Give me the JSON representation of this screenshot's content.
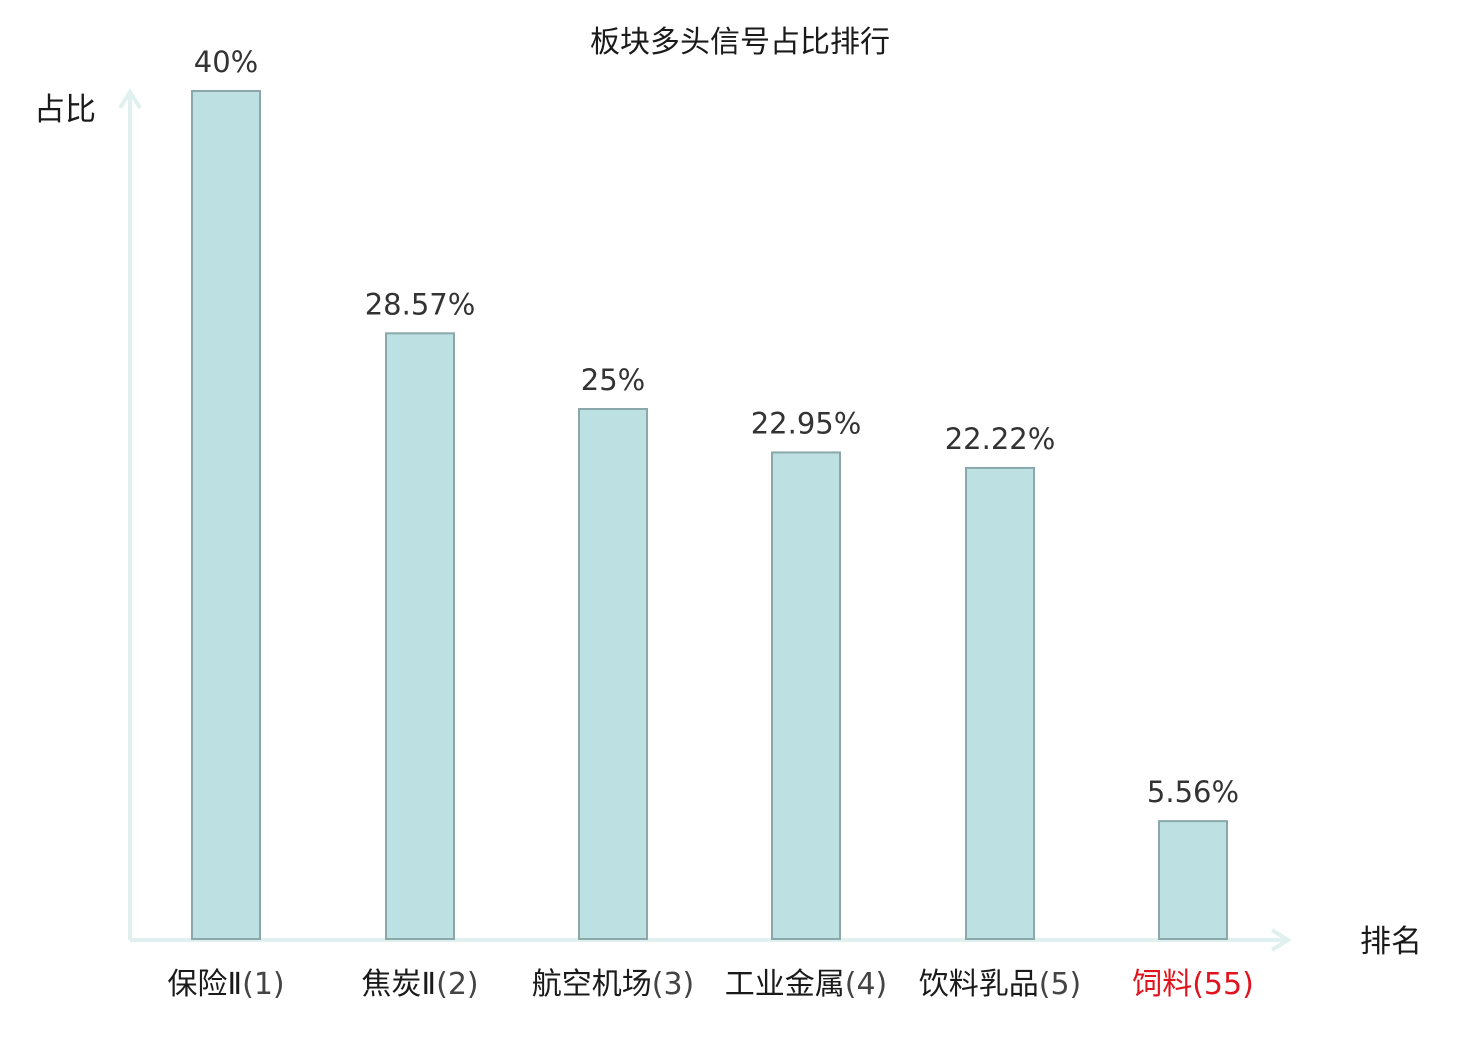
{
  "chart_data": {
    "type": "bar",
    "title": "板块多头信号占比排行",
    "xlabel": "排名",
    "ylabel": "占比",
    "ylim": [
      0,
      40
    ],
    "categories": [
      {
        "name": "保险Ⅱ",
        "rank": "(1)",
        "highlight": false
      },
      {
        "name": "焦炭Ⅱ",
        "rank": "(2)",
        "highlight": false
      },
      {
        "name": "航空机场",
        "rank": "(3)",
        "highlight": false
      },
      {
        "name": "工业金属",
        "rank": "(4)",
        "highlight": false
      },
      {
        "name": "饮料乳品",
        "rank": "(5)",
        "highlight": false
      },
      {
        "name": "饲料",
        "rank": "(55)",
        "highlight": true
      }
    ],
    "values": [
      40,
      28.57,
      25,
      22.95,
      22.22,
      5.56
    ],
    "value_labels": [
      "40%",
      "28.57%",
      "25%",
      "22.95%",
      "22.22%",
      "5.56%"
    ],
    "grid": false,
    "colors": {
      "bar_fill": "#bde0e2",
      "bar_stroke": "#8aa8aa",
      "axis": "#dff0ee",
      "highlight_text": "#e0141e",
      "text": "#1a1a1a",
      "rank_text": "#444444"
    }
  }
}
